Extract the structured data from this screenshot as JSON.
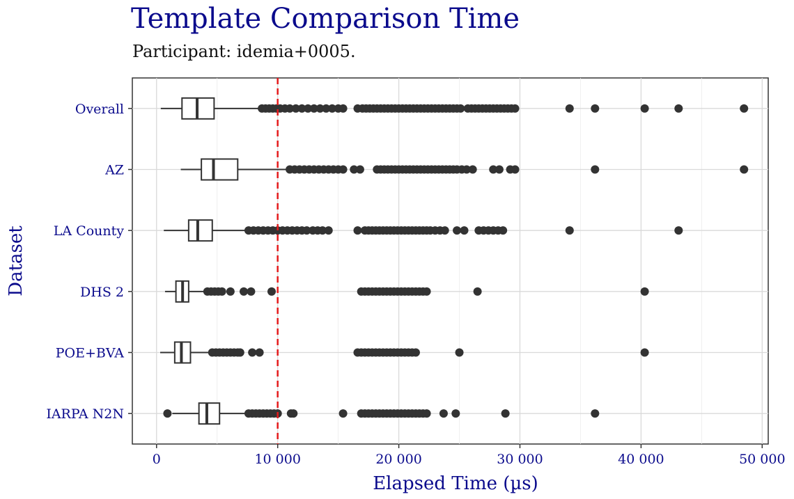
{
  "title": "Template Comparison Time",
  "subtitle": "Participant: idemia+0005.",
  "colors": {
    "title": "#0a0a8c",
    "axis_text": "#0a0a8c",
    "marks": "#333333",
    "threshold": "#e41a1c",
    "grid": "#d9d9d9"
  },
  "chart_data": {
    "type": "boxplot",
    "orientation": "horizontal",
    "xlabel": "Elapsed Time (µs)",
    "ylabel": "Dataset",
    "xlim": [
      -2000,
      50500
    ],
    "xticks": [
      0,
      10000,
      20000,
      30000,
      40000,
      50000
    ],
    "xtick_labels": [
      "0",
      "10 000",
      "20 000",
      "30 000",
      "40 000",
      "50 000"
    ],
    "grid": true,
    "reference_line": {
      "x": 10000,
      "style": "dashed",
      "color": "#e41a1c"
    },
    "categories": [
      "Overall",
      "AZ",
      "LA County",
      "DHS 2",
      "POE+BVA",
      "IARPA N2N"
    ],
    "boxes": [
      {
        "name": "Overall",
        "whisker_low": 350,
        "q1": 2100,
        "median": 3350,
        "q3": 4750,
        "whisker_high": 8600,
        "outliers": [
          8700,
          9000,
          9300,
          9600,
          9900,
          10200,
          10600,
          11000,
          11500,
          12000,
          12500,
          13000,
          13500,
          14000,
          14500,
          15000,
          15400,
          16600,
          17000,
          17300,
          17600,
          17900,
          18200,
          18500,
          18800,
          19100,
          19400,
          19700,
          20000,
          20300,
          20600,
          20900,
          21200,
          21500,
          21800,
          22100,
          22400,
          22700,
          23000,
          23300,
          23600,
          23900,
          24200,
          24500,
          24800,
          25100,
          25700,
          26000,
          26300,
          26600,
          26900,
          27200,
          27500,
          27800,
          28100,
          28400,
          28700,
          29000,
          29300,
          29600,
          34100,
          36200,
          40300,
          43100,
          48500
        ]
      },
      {
        "name": "AZ",
        "whisker_low": 2000,
        "q1": 3700,
        "median": 4700,
        "q3": 6700,
        "whisker_high": 10900,
        "outliers": [
          11000,
          11400,
          11800,
          12200,
          12600,
          13000,
          13400,
          13800,
          14200,
          14600,
          15000,
          15400,
          16300,
          16800,
          18200,
          18500,
          18800,
          19100,
          19400,
          19700,
          20000,
          20300,
          20600,
          20900,
          21200,
          21500,
          21800,
          22100,
          22400,
          22700,
          23000,
          23300,
          23600,
          23900,
          24200,
          24500,
          24800,
          25200,
          25600,
          26100,
          27800,
          28300,
          29200,
          29600,
          36200,
          48500
        ]
      },
      {
        "name": "LA County",
        "whisker_low": 600,
        "q1": 2650,
        "median": 3400,
        "q3": 4600,
        "whisker_high": 7500,
        "outliers": [
          7600,
          8000,
          8400,
          8800,
          9200,
          9600,
          10000,
          10400,
          10800,
          11200,
          11600,
          12000,
          12400,
          12900,
          13300,
          13700,
          14200,
          16600,
          17200,
          17500,
          17800,
          18100,
          18400,
          18700,
          19000,
          19300,
          19600,
          19900,
          20200,
          20500,
          20800,
          21100,
          21400,
          21700,
          22000,
          22300,
          22600,
          23000,
          23400,
          23800,
          24800,
          25400,
          26600,
          27000,
          27400,
          27800,
          28200,
          28600,
          34100,
          43100
        ]
      },
      {
        "name": "DHS 2",
        "whisker_low": 700,
        "q1": 1600,
        "median": 2150,
        "q3": 2650,
        "whisker_high": 4100,
        "outliers": [
          4200,
          4500,
          4800,
          5100,
          5400,
          6100,
          7200,
          7800,
          9500,
          16900,
          17200,
          17500,
          17800,
          18100,
          18400,
          18700,
          19000,
          19300,
          19600,
          19900,
          20200,
          20500,
          20800,
          21100,
          21400,
          21700,
          22000,
          22300,
          26500,
          40300
        ]
      },
      {
        "name": "POE+BVA",
        "whisker_low": 300,
        "q1": 1500,
        "median": 2050,
        "q3": 2800,
        "whisker_high": 4500,
        "outliers": [
          4600,
          4900,
          5200,
          5500,
          5800,
          6100,
          6400,
          6700,
          6900,
          7900,
          8500,
          16600,
          16900,
          17200,
          17500,
          17800,
          18100,
          18400,
          18700,
          19000,
          19300,
          19600,
          19900,
          20200,
          20500,
          20800,
          21100,
          21400,
          25000,
          40300
        ]
      },
      {
        "name": "IARPA N2N",
        "whisker_low": 1300,
        "q1": 3500,
        "median": 4150,
        "q3": 5200,
        "whisker_high": 7500,
        "outliers": [
          900,
          7600,
          7900,
          8200,
          8500,
          8800,
          9100,
          9400,
          9700,
          10000,
          11100,
          11300,
          15400,
          16900,
          17200,
          17500,
          17800,
          18100,
          18400,
          18700,
          19000,
          19300,
          19600,
          19900,
          20200,
          20500,
          20800,
          21100,
          21400,
          21700,
          22000,
          22300,
          23700,
          24700,
          28800,
          36200
        ]
      }
    ]
  }
}
